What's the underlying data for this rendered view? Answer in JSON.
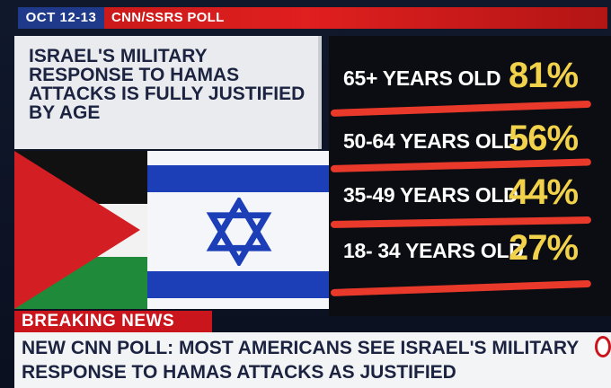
{
  "top_bar": {
    "date": "OCT 12-13",
    "poll_label": "CNN/SSRS POLL"
  },
  "headline": "ISRAEL'S MILITARY RESPONSE TO HAMAS ATTACKS IS FULLY JUSTIFIED BY AGE",
  "results": [
    {
      "age": "65+ YEARS OLD",
      "percent": "81%"
    },
    {
      "age": "50-64 YEARS OLD",
      "percent": "56%"
    },
    {
      "age": "35-49 YEARS OLD",
      "percent": "44%"
    },
    {
      "age": "18- 34 YEARS OLD",
      "percent": "27%"
    }
  ],
  "breaking_label": "BREAKING NEWS",
  "ticker": "NEW CNN POLL: MOST AMERICANS SEE ISRAEL'S MILITARY RESPONSE TO HAMAS ATTACKS AS JUSTIFIED",
  "colors": {
    "accent_red": "#cc1a1a",
    "percent_yellow": "#f2d24a",
    "navy": "#1c2340",
    "underline_red": "#e8392b"
  }
}
